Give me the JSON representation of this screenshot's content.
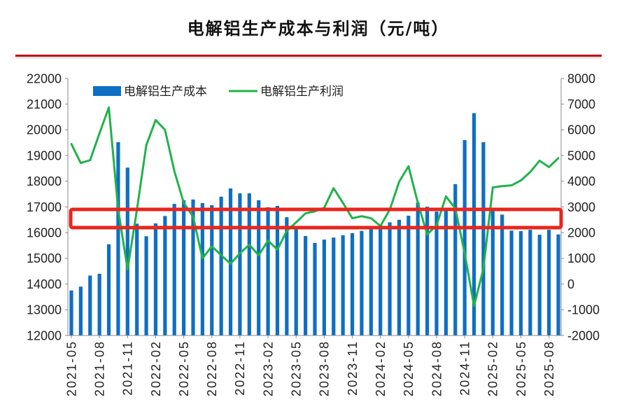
{
  "chart_data": {
    "type": "bar",
    "title": "电解铝生产成本与利润（元/吨）",
    "legend": "top-left",
    "grid": false,
    "x": [
      "2021-05",
      "2021-06",
      "2021-07",
      "2021-08",
      "2021-09",
      "2021-10",
      "2021-11",
      "2021-12",
      "2022-01",
      "2022-02",
      "2022-03",
      "2022-04",
      "2022-05",
      "2022-06",
      "2022-07",
      "2022-08",
      "2022-09",
      "2022-10",
      "2022-11",
      "2022-12",
      "2023-01",
      "2023-02",
      "2023-03",
      "2023-04",
      "2023-05",
      "2023-06",
      "2023-07",
      "2023-08",
      "2023-09",
      "2023-10",
      "2023-11",
      "2023-12",
      "2024-01",
      "2024-02",
      "2024-03",
      "2024-04",
      "2024-05",
      "2024-06",
      "2024-07",
      "2024-08",
      "2024-09",
      "2024-10",
      "2024-11",
      "2024-12",
      "2025-01",
      "2025-02",
      "2025-03",
      "2025-04",
      "2025-05",
      "2025-06",
      "2025-07",
      "2025-08",
      "2025-09"
    ],
    "xtick_every": 3,
    "series": [
      {
        "name": "电解铝生产成本",
        "type": "bar",
        "axis": "left",
        "color": "#0e6fc3",
        "values": [
          13750,
          13900,
          14330,
          14400,
          15550,
          19520,
          18530,
          16350,
          15860,
          16360,
          16650,
          17120,
          17260,
          17290,
          17150,
          17070,
          17400,
          17720,
          17530,
          17530,
          17260,
          16990,
          17040,
          16600,
          16170,
          15870,
          15600,
          15730,
          15810,
          15900,
          15980,
          16070,
          16180,
          16290,
          16400,
          16500,
          16660,
          17170,
          17010,
          16820,
          16960,
          17890,
          19600,
          20650,
          19520,
          16850,
          16700,
          16080,
          16060,
          16110,
          15920,
          16110,
          15930
        ]
      },
      {
        "name": "电解铝生产利润",
        "type": "line",
        "axis": "right",
        "color": "#21b24b",
        "values": [
          5450,
          4710,
          4820,
          5860,
          6870,
          2900,
          570,
          2890,
          5400,
          6380,
          6000,
          4390,
          3160,
          2620,
          1000,
          1470,
          1120,
          790,
          1200,
          1530,
          1120,
          1690,
          1340,
          2070,
          2400,
          2750,
          2830,
          2970,
          3730,
          3160,
          2560,
          2640,
          2560,
          2260,
          2890,
          3980,
          4580,
          3160,
          1930,
          2290,
          3410,
          2940,
          1200,
          -850,
          600,
          3760,
          3810,
          3840,
          4030,
          4360,
          4800,
          4550,
          4900
        ]
      }
    ],
    "y_left": {
      "min": 12000,
      "max": 22000,
      "ticks": [
        12000,
        13000,
        14000,
        15000,
        16000,
        17000,
        18000,
        19000,
        20000,
        21000,
        22000
      ]
    },
    "y_right": {
      "min": -2000,
      "max": 8000,
      "ticks": [
        -2000,
        -1000,
        0,
        1000,
        2000,
        3000,
        4000,
        5000,
        6000,
        7000,
        8000
      ]
    },
    "colors": {
      "title_rule": "#c00000",
      "highlight": "#e8261d"
    }
  }
}
